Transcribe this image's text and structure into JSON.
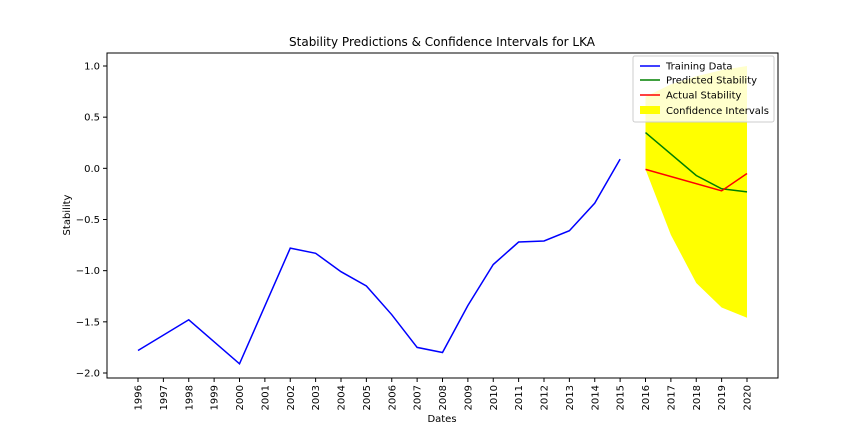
{
  "chart_data": {
    "type": "line",
    "title": "Stability Predictions & Confidence Intervals for LKA",
    "xlabel": "Dates",
    "ylabel": "Stability",
    "ylim": [
      -2.05,
      1.12
    ],
    "yticks": [
      -2.0,
      -1.5,
      -1.0,
      -0.5,
      0.0,
      0.5,
      1.0
    ],
    "ytick_labels": [
      "−2.0",
      "−1.5",
      "−1.0",
      "−0.5",
      "0.0",
      "0.5",
      "1.0"
    ],
    "xticks": [
      "1996",
      "1997",
      "1998",
      "1999",
      "2000",
      "2001",
      "2002",
      "2003",
      "2004",
      "2005",
      "2006",
      "2007",
      "2008",
      "2009",
      "2010",
      "2011",
      "2012",
      "2013",
      "2014",
      "2015",
      "2016",
      "2017",
      "2018",
      "2019",
      "2020"
    ],
    "legend_position": "top-right",
    "grid": false,
    "series": [
      {
        "name": "Training Data",
        "color": "#0000ff",
        "points": [
          [
            "1996",
            -1.78
          ],
          [
            "1998",
            -1.48
          ],
          [
            "2000",
            -1.91
          ],
          [
            "2002",
            -0.78
          ],
          [
            "2003",
            -0.83
          ],
          [
            "2004",
            -1.01
          ],
          [
            "2005",
            -1.15
          ],
          [
            "2006",
            -1.43
          ],
          [
            "2007",
            -1.75
          ],
          [
            "2008",
            -1.8
          ],
          [
            "2009",
            -1.34
          ],
          [
            "2010",
            -0.94
          ],
          [
            "2011",
            -0.72
          ],
          [
            "2012",
            -0.71
          ],
          [
            "2013",
            -0.61
          ],
          [
            "2014",
            -0.34
          ],
          [
            "2015",
            0.09
          ]
        ]
      },
      {
        "name": "Predicted Stability",
        "color": "#008000",
        "points": [
          [
            "2016",
            0.35
          ],
          [
            "2018",
            -0.07
          ],
          [
            "2019",
            -0.2
          ],
          [
            "2020",
            -0.23
          ]
        ]
      },
      {
        "name": "Actual Stability",
        "color": "#ff0000",
        "points": [
          [
            "2016",
            -0.01
          ],
          [
            "2019",
            -0.22
          ],
          [
            "2020",
            -0.05
          ]
        ]
      }
    ],
    "confidence_interval": {
      "name": "Confidence Intervals",
      "color": "#ffff00",
      "x": [
        "2016",
        "2017",
        "2018",
        "2019",
        "2020"
      ],
      "upper": [
        0.7,
        0.82,
        0.9,
        0.96,
        1.0
      ],
      "lower": [
        -0.01,
        -0.65,
        -1.12,
        -1.36,
        -1.46
      ]
    }
  }
}
